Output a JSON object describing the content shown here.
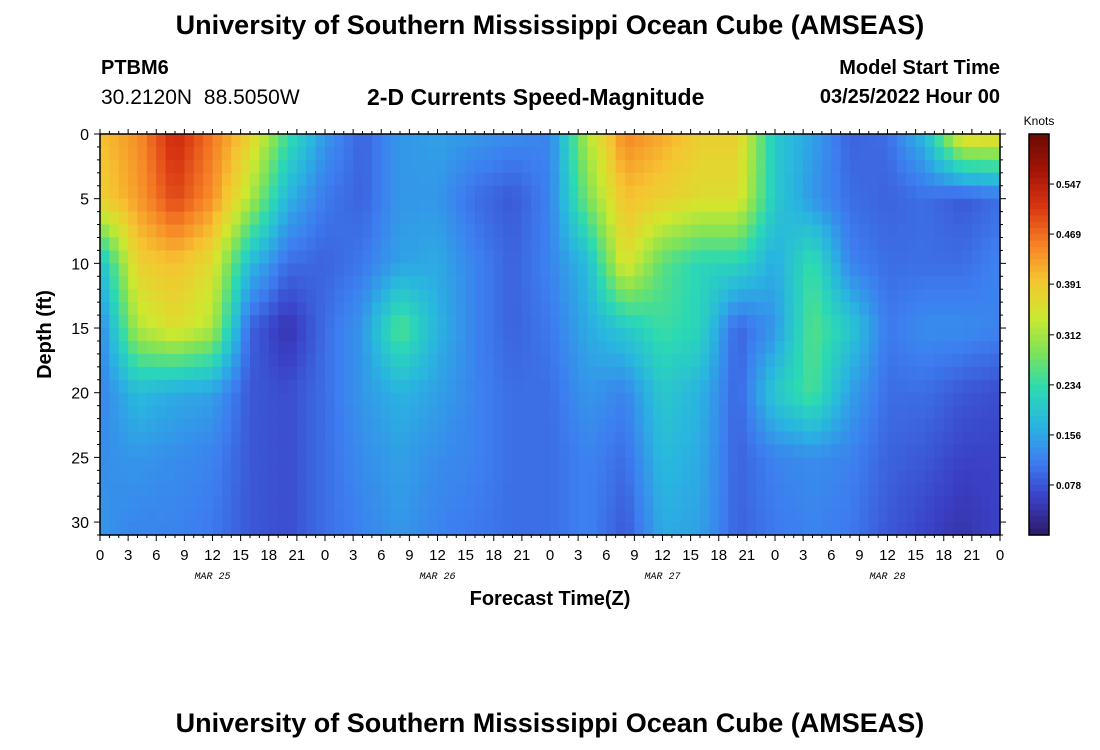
{
  "header": {
    "title": "University of Southern Mississippi Ocean Cube (AMSEAS)",
    "station": "PTBM6",
    "coordinates": "30.2120N  88.5050W",
    "subtitle": "2-D Currents Speed-Magnitude",
    "model_start_label": "Model Start Time",
    "model_start_value": "03/25/2022 Hour 00"
  },
  "footer": {
    "title": "University of Southern Mississippi Ocean Cube (AMSEAS)"
  },
  "chart_data": {
    "type": "heatmap",
    "xlabel": "Forecast Time(Z)",
    "ylabel": "Depth (ft)",
    "x_range_hours": [
      0,
      96
    ],
    "y_range_ft": [
      0,
      31
    ],
    "x_tick_labels": [
      "0",
      "3",
      "6",
      "9",
      "12",
      "15",
      "18",
      "21",
      "0",
      "3",
      "6",
      "9",
      "12",
      "15",
      "18",
      "21",
      "0",
      "3",
      "6",
      "9",
      "12",
      "15",
      "18",
      "21",
      "0",
      "3",
      "6",
      "9",
      "12",
      "15",
      "18",
      "21",
      "0"
    ],
    "date_labels": [
      {
        "label": "MAR 25",
        "hour": 12
      },
      {
        "label": "MAR 26",
        "hour": 36
      },
      {
        "label": "MAR 27",
        "hour": 60
      },
      {
        "label": "MAR 28",
        "hour": 84
      }
    ],
    "y_ticks": [
      0,
      5,
      10,
      15,
      20,
      25,
      30
    ],
    "colorbar": {
      "unit": "Knots",
      "min": 0.0,
      "max": 0.625,
      "ticks": [
        "0.547",
        "0.469",
        "0.391",
        "0.312",
        "0.234",
        "0.156",
        "0.078"
      ],
      "colors": [
        "#2c1a66",
        "#3a3fc4",
        "#3d7df0",
        "#29b5e0",
        "#2bd9b4",
        "#7de35a",
        "#cfe82e",
        "#f6c431",
        "#f67f25",
        "#d83512",
        "#a31406",
        "#6a0a02"
      ]
    },
    "grid": "off",
    "speed_field_knots": {
      "hours": [
        0,
        4,
        8,
        12,
        16,
        20,
        24,
        28,
        32,
        36,
        40,
        44,
        48,
        52,
        56,
        60,
        64,
        68,
        72,
        76,
        80,
        84,
        88,
        92,
        96
      ],
      "depths_ft": [
        0,
        5,
        10,
        15,
        20,
        25,
        31
      ],
      "values": [
        [
          0.4,
          0.44,
          0.53,
          0.46,
          0.38,
          0.24,
          0.14,
          0.09,
          0.14,
          0.15,
          0.14,
          0.13,
          0.12,
          0.32,
          0.45,
          0.42,
          0.38,
          0.38,
          0.2,
          0.15,
          0.09,
          0.1,
          0.18,
          0.38,
          0.38
        ],
        [
          0.38,
          0.43,
          0.5,
          0.44,
          0.32,
          0.17,
          0.11,
          0.09,
          0.14,
          0.14,
          0.1,
          0.08,
          0.12,
          0.28,
          0.4,
          0.38,
          0.36,
          0.36,
          0.2,
          0.14,
          0.1,
          0.09,
          0.1,
          0.08,
          0.1
        ],
        [
          0.18,
          0.38,
          0.4,
          0.36,
          0.18,
          0.1,
          0.09,
          0.11,
          0.15,
          0.16,
          0.12,
          0.09,
          0.12,
          0.18,
          0.36,
          0.26,
          0.22,
          0.22,
          0.16,
          0.24,
          0.12,
          0.1,
          0.1,
          0.1,
          0.12
        ],
        [
          0.12,
          0.32,
          0.36,
          0.32,
          0.09,
          0.04,
          0.1,
          0.14,
          0.26,
          0.17,
          0.12,
          0.09,
          0.11,
          0.16,
          0.2,
          0.24,
          0.22,
          0.09,
          0.14,
          0.26,
          0.2,
          0.11,
          0.13,
          0.13,
          0.12
        ],
        [
          0.12,
          0.18,
          0.16,
          0.15,
          0.08,
          0.07,
          0.1,
          0.14,
          0.17,
          0.15,
          0.12,
          0.1,
          0.1,
          0.14,
          0.12,
          0.2,
          0.17,
          0.09,
          0.2,
          0.25,
          0.15,
          0.1,
          0.1,
          0.08,
          0.07
        ],
        [
          0.13,
          0.14,
          0.13,
          0.12,
          0.08,
          0.07,
          0.1,
          0.13,
          0.15,
          0.13,
          0.12,
          0.1,
          0.1,
          0.12,
          0.1,
          0.18,
          0.16,
          0.09,
          0.12,
          0.13,
          0.12,
          0.09,
          0.08,
          0.06,
          0.06
        ],
        [
          0.14,
          0.12,
          0.12,
          0.11,
          0.08,
          0.07,
          0.1,
          0.12,
          0.14,
          0.12,
          0.11,
          0.1,
          0.1,
          0.12,
          0.08,
          0.16,
          0.15,
          0.09,
          0.11,
          0.12,
          0.11,
          0.08,
          0.06,
          0.04,
          0.06
        ]
      ]
    }
  }
}
